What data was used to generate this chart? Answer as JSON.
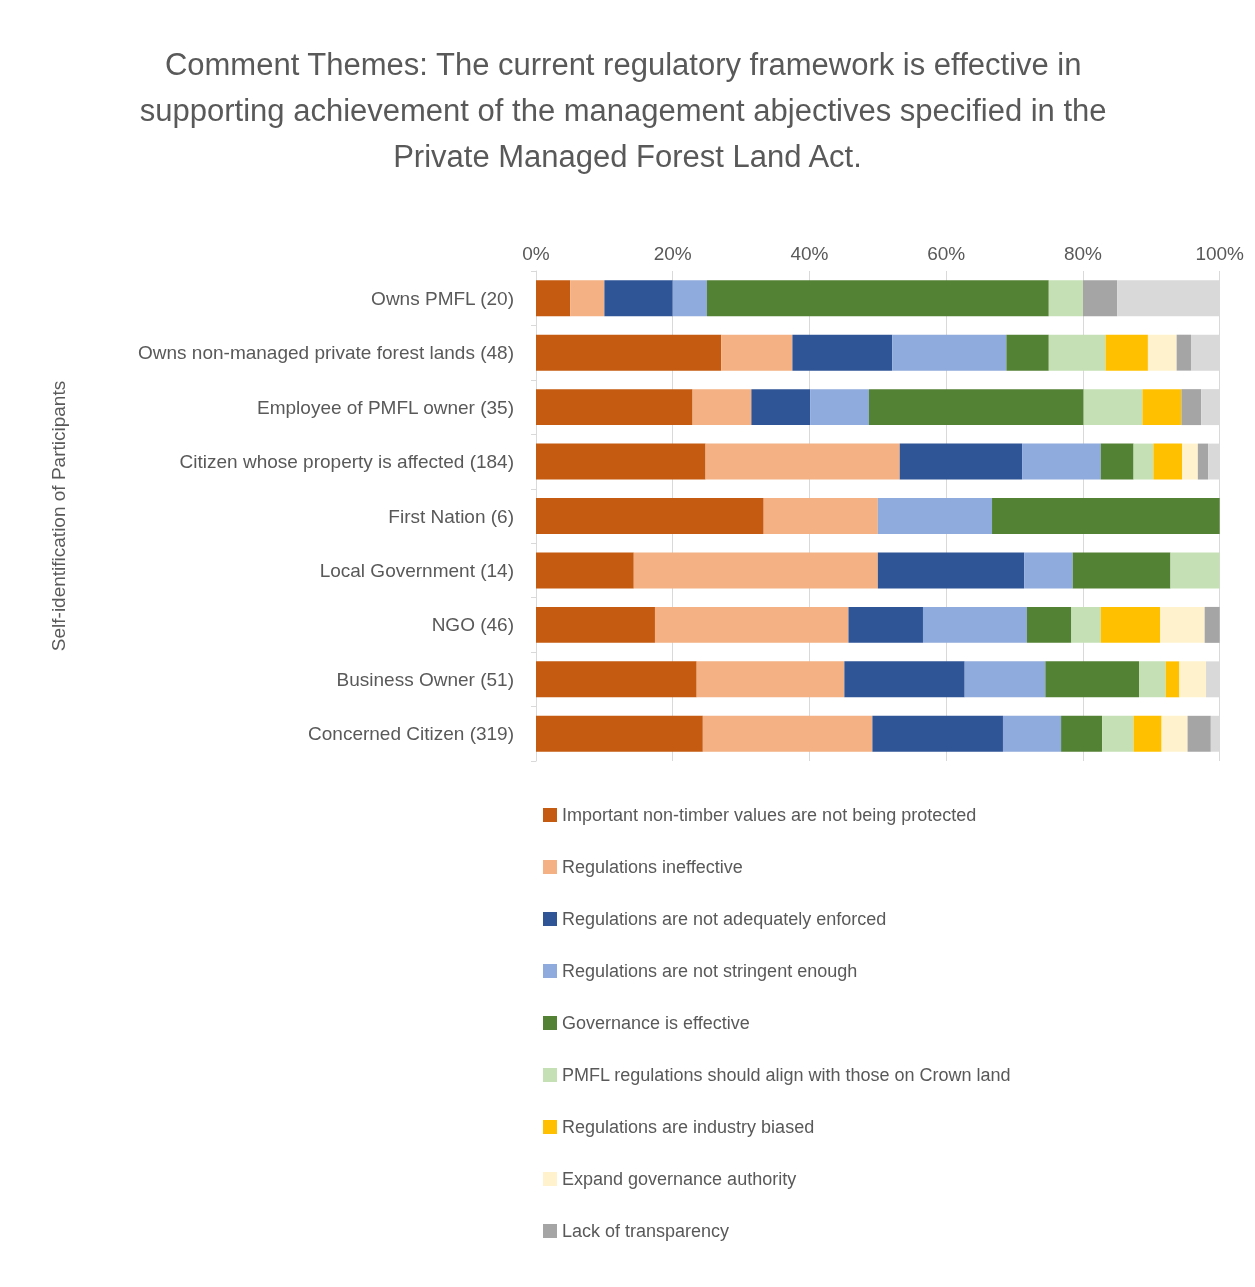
{
  "chart_data": {
    "type": "bar",
    "orientation": "horizontal",
    "stacked": true,
    "title": "Comment Themes: The current regulatory framework is effective in supporting achievement of the management abjectives specified in the Private Managed Forest Land Act.",
    "ylabel": "Self-identification of Participants",
    "categories": [
      "Owns PMFL (20)",
      "Owns non-managed private forest lands (48)",
      "Employee of PMFL owner (35)",
      "Citizen whose property is affected (184)",
      "First Nation (6)",
      "Local Government (14)",
      "NGO (46)",
      "Business Owner (51)",
      "Concerned Citizen (319)"
    ],
    "xlim": [
      0,
      100
    ],
    "xticks": [
      {
        "value": 0,
        "label": "0%"
      },
      {
        "value": 20,
        "label": "20%"
      },
      {
        "value": 40,
        "label": "40%"
      },
      {
        "value": 60,
        "label": "60%"
      },
      {
        "value": 80,
        "label": "80%"
      },
      {
        "value": 100,
        "label": "100%"
      }
    ],
    "grid": "x",
    "legend": "bottom",
    "series": [
      {
        "name": "Important non-timber values are not being protected",
        "color": "#c55a11",
        "values": [
          5,
          27.1,
          22.9,
          24.8,
          33.3,
          14.3,
          17.4,
          23.5,
          24.4
        ]
      },
      {
        "name": "Regulations ineffective",
        "color": "#f4b183",
        "values": [
          5,
          10.4,
          8.6,
          28.4,
          16.7,
          35.7,
          28.3,
          21.6,
          24.8
        ]
      },
      {
        "name": "Regulations are not adequately enforced",
        "color": "#2f5597",
        "values": [
          10,
          14.6,
          8.6,
          17.9,
          0,
          21.4,
          10.9,
          17.6,
          19.1
        ]
      },
      {
        "name": "Regulations are not stringent enough",
        "color": "#8faadc",
        "values": [
          5,
          16.7,
          8.6,
          11.5,
          16.7,
          7.1,
          15.2,
          11.8,
          8.5
        ]
      },
      {
        "name": "Governance is effective",
        "color": "#548235",
        "values": [
          50,
          6.2,
          31.4,
          4.8,
          33.3,
          14.3,
          6.5,
          13.7,
          6.0
        ]
      },
      {
        "name": "PMFL regulations should align with those on Crown land",
        "color": "#c5e0b4",
        "values": [
          5,
          8.3,
          8.6,
          2.9,
          0,
          7.2,
          4.3,
          3.9,
          4.6
        ]
      },
      {
        "name": "Regulations are industry biased",
        "color": "#ffc000",
        "values": [
          0,
          6.2,
          5.7,
          4.2,
          0,
          0,
          8.7,
          2.0,
          4.1
        ]
      },
      {
        "name": "Expand governance authority",
        "color": "#fff2cc",
        "values": [
          0,
          4.2,
          0,
          2.3,
          0,
          0,
          6.5,
          3.9,
          3.8
        ]
      },
      {
        "name": "Lack of transparency",
        "color": "#a5a5a5",
        "values": [
          5,
          2.1,
          2.9,
          1.5,
          0,
          0,
          2.2,
          0,
          3.4
        ]
      },
      {
        "color": "#d9d9d9",
        "values": [
          15,
          4.2,
          2.9,
          1.7,
          0,
          0,
          0,
          2.0,
          1.3
        ]
      }
    ]
  }
}
